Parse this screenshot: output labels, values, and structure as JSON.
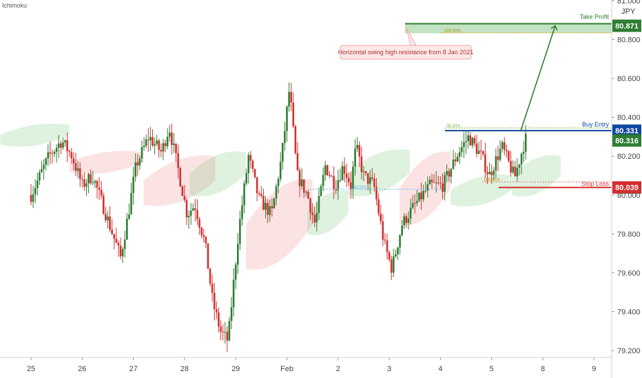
{
  "indicator_label": "Ichimoku",
  "currency": "JPY",
  "chart_data": {
    "type": "candlestick",
    "price_axis": {
      "ticks": [
        79.2,
        79.4,
        79.6,
        79.8,
        80.0,
        80.2,
        80.4,
        80.6,
        80.8,
        81.0
      ],
      "tick_labels": [
        "79.200",
        "79.400",
        "79.600",
        "79.800",
        "80.000",
        "80.200",
        "80.400",
        "80.600",
        "80.800",
        "81.000"
      ],
      "range": [
        79.13,
        81.04
      ]
    },
    "date_axis": {
      "labels": [
        "25",
        "26",
        "27",
        "28",
        "29",
        "Feb",
        "2",
        "3",
        "4",
        "5",
        "8",
        "9"
      ],
      "index_range": [
        0,
        11.7
      ]
    },
    "levels": [
      {
        "name": "Take Profit",
        "value": 80.871,
        "value_label": "80.871",
        "color": "#2e7d32"
      },
      {
        "name": "Buy Entry",
        "value": 80.331,
        "value_label": "80.331",
        "color": "#0d47a1"
      },
      {
        "name": "Stop Loss",
        "value": 80.039,
        "value_label": "80.039",
        "color": "#d32f2f"
      }
    ],
    "last_price": {
      "value": 80.316,
      "label": "80.316",
      "color": "#2e7d32"
    },
    "fib_labels": {
      "take_profit": "100.00%",
      "entry": "38.20%",
      "stop": "100.00%",
      "mid": "38.20%"
    },
    "annotation": "Horizontal swing high resistance from 8 Jan 2021",
    "close_path": [
      [
        0.0,
        80.0
      ],
      [
        0.35,
        80.2
      ],
      [
        0.6,
        80.28
      ],
      [
        0.8,
        80.2
      ],
      [
        1.0,
        80.05
      ],
      [
        1.2,
        80.1
      ],
      [
        1.4,
        79.95
      ],
      [
        1.75,
        79.68
      ],
      [
        1.9,
        79.9
      ],
      [
        2.05,
        80.15
      ],
      [
        2.3,
        80.3
      ],
      [
        2.55,
        80.22
      ],
      [
        2.7,
        80.35
      ],
      [
        2.9,
        80.1
      ],
      [
        3.05,
        79.9
      ],
      [
        3.2,
        79.95
      ],
      [
        3.4,
        79.75
      ],
      [
        3.55,
        79.45
      ],
      [
        3.7,
        79.3
      ],
      [
        3.85,
        79.25
      ],
      [
        4.05,
        79.8
      ],
      [
        4.25,
        80.2
      ],
      [
        4.45,
        79.98
      ],
      [
        4.7,
        79.9
      ],
      [
        4.9,
        80.2
      ],
      [
        5.05,
        80.55
      ],
      [
        5.2,
        80.1
      ],
      [
        5.4,
        80.0
      ],
      [
        5.55,
        79.85
      ],
      [
        5.75,
        80.15
      ],
      [
        5.95,
        80.05
      ],
      [
        6.1,
        80.15
      ],
      [
        6.25,
        80.05
      ],
      [
        6.35,
        80.25
      ],
      [
        6.5,
        80.1
      ],
      [
        6.7,
        80.05
      ],
      [
        6.9,
        79.75
      ],
      [
        7.05,
        79.62
      ],
      [
        7.25,
        79.85
      ],
      [
        7.5,
        79.95
      ],
      [
        7.8,
        80.05
      ],
      [
        8.05,
        80.05
      ],
      [
        8.35,
        80.22
      ],
      [
        8.55,
        80.3
      ],
      [
        8.8,
        80.2
      ],
      [
        8.95,
        80.1
      ],
      [
        9.2,
        80.25
      ],
      [
        9.45,
        80.09
      ],
      [
        9.65,
        80.28
      ],
      [
        9.7,
        80.32
      ]
    ]
  }
}
